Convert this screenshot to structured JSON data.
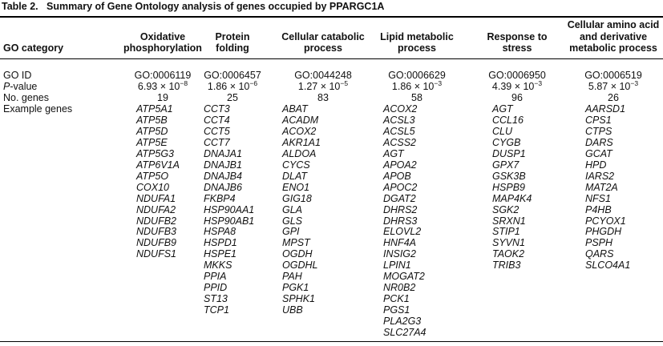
{
  "table": {
    "caption": {
      "label": "Table 2.",
      "text": "Summary of Gene Ontology analysis of genes occupied by PPARGC1A"
    },
    "first_column_header": "GO category",
    "row_labels": {
      "go_id": "GO ID",
      "p_value_italic": "P",
      "p_value_rest": "-value",
      "n_genes": "No. genes",
      "example_genes": "Example genes"
    },
    "columns": [
      {
        "header": [
          "Oxidative",
          "phosphorylation"
        ],
        "go_id": "GO:0006119",
        "p_value": {
          "mantissa": "6.93 × 10",
          "exponent": "−8"
        },
        "n_genes": 19,
        "genes": [
          "ATP5A1",
          "ATP5B",
          "ATP5D",
          "ATP5E",
          "ATP5G3",
          "ATP6V1A",
          "ATP5O",
          "COX10",
          "NDUFA1",
          "NDUFA2",
          "NDUFB2",
          "NDUFB3",
          "NDUFB9",
          "NDUFS1"
        ]
      },
      {
        "header": [
          "Protein",
          "folding"
        ],
        "go_id": "GO:0006457",
        "p_value": {
          "mantissa": "1.86 × 10",
          "exponent": "−6"
        },
        "n_genes": 25,
        "genes": [
          "CCT3",
          "CCT4",
          "CCT5",
          "CCT7",
          "DNAJA1",
          "DNAJB1",
          "DNAJB4",
          "DNAJB6",
          "FKBP4",
          "HSP90AA1",
          "HSP90AB1",
          "HSPA8",
          "HSPD1",
          "HSPE1",
          "MKKS",
          "PPIA",
          "PPID",
          "ST13",
          "TCP1"
        ]
      },
      {
        "header": [
          "Cellular catabolic",
          "process"
        ],
        "go_id": "GO:0044248",
        "p_value": {
          "mantissa": "1.27 × 10",
          "exponent": "−5"
        },
        "n_genes": 83,
        "genes": [
          "ABAT",
          "ACADM",
          "ACOX2",
          "AKR1A1",
          "ALDOA",
          "CYCS",
          "DLAT",
          "ENO1",
          "GIG18",
          "GLA",
          "GLS",
          "GPI",
          "MPST",
          "OGDH",
          "OGDHL",
          "PAH",
          "PGK1",
          "SPHK1",
          "UBB"
        ]
      },
      {
        "header": [
          "Lipid metabolic",
          "process"
        ],
        "go_id": "GO:0006629",
        "p_value": {
          "mantissa": "1.86 × 10",
          "exponent": "−3"
        },
        "n_genes": 58,
        "genes": [
          "ACOX2",
          "ACSL3",
          "ACSL5",
          "ACSS2",
          "AGT",
          "APOA2",
          "APOB",
          "APOC2",
          "DGAT2",
          "DHRS2",
          "DHRS3",
          "ELOVL2",
          "HNF4A",
          "INSIG2",
          "LPIN1",
          "MOGAT2",
          "NR0B2",
          "PCK1",
          "PGS1",
          "PLA2G3",
          "SLC27A4"
        ]
      },
      {
        "header": [
          "Response to",
          "stress"
        ],
        "go_id": "GO:0006950",
        "p_value": {
          "mantissa": "4.39 × 10",
          "exponent": "−3"
        },
        "n_genes": 96,
        "genes": [
          "AGT",
          "CCL16",
          "CLU",
          "CYGB",
          "DUSP1",
          "GPX7",
          "GSK3B",
          "HSPB9",
          "MAP4K4",
          "SGK2",
          "SRXN1",
          "STIP1",
          "SYVN1",
          "TAOK2",
          "TRIB3"
        ]
      },
      {
        "header": [
          "Cellular amino acid",
          "and derivative",
          "metabolic process"
        ],
        "go_id": "GO:0006519",
        "p_value": {
          "mantissa": "5.87 × 10",
          "exponent": "−3"
        },
        "n_genes": 26,
        "genes": [
          "AARSD1",
          "CPS1",
          "CTPS",
          "DARS",
          "GCAT",
          "HPD",
          "IARS2",
          "MAT2A",
          "NFS1",
          "P4HB",
          "PCYOX1",
          "PHGDH",
          "PSPH",
          "QARS",
          "SLCO4A1"
        ]
      }
    ]
  }
}
